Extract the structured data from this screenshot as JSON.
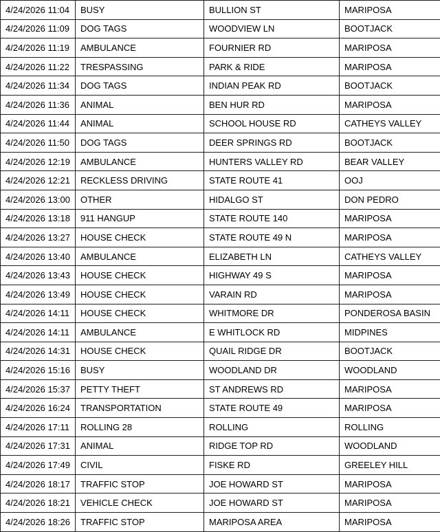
{
  "colors": {
    "border": "#1f1f1f",
    "text": "#000000",
    "background": "#ffffff"
  },
  "table": {
    "rows": [
      {
        "datetime": "4/24/2026 11:04",
        "incident_type": "BUSY",
        "street": "BULLION ST",
        "community": "MARIPOSA"
      },
      {
        "datetime": "4/24/2026 11:09",
        "incident_type": "DOG TAGS",
        "street": "WOODVIEW LN",
        "community": "BOOTJACK"
      },
      {
        "datetime": "4/24/2026 11:19",
        "incident_type": "AMBULANCE",
        "street": "FOURNIER RD",
        "community": "MARIPOSA"
      },
      {
        "datetime": "4/24/2026 11:22",
        "incident_type": "TRESPASSING",
        "street": "PARK & RIDE",
        "community": "MARIPOSA"
      },
      {
        "datetime": "4/24/2026 11:34",
        "incident_type": "DOG TAGS",
        "street": "INDIAN PEAK RD",
        "community": "BOOTJACK"
      },
      {
        "datetime": "4/24/2026 11:36",
        "incident_type": "ANIMAL",
        "street": "BEN HUR RD",
        "community": "MARIPOSA"
      },
      {
        "datetime": "4/24/2026 11:44",
        "incident_type": "ANIMAL",
        "street": "SCHOOL HOUSE RD",
        "community": "CATHEYS VALLEY"
      },
      {
        "datetime": "4/24/2026 11:50",
        "incident_type": "DOG TAGS",
        "street": "DEER SPRINGS RD",
        "community": "BOOTJACK"
      },
      {
        "datetime": "4/24/2026 12:19",
        "incident_type": "AMBULANCE",
        "street": "HUNTERS VALLEY RD",
        "community": "BEAR VALLEY"
      },
      {
        "datetime": "4/24/2026 12:21",
        "incident_type": "RECKLESS DRIVING",
        "street": "STATE ROUTE 41",
        "community": "OOJ"
      },
      {
        "datetime": "4/24/2026 13:00",
        "incident_type": "OTHER",
        "street": "HIDALGO ST",
        "community": "DON PEDRO"
      },
      {
        "datetime": "4/24/2026 13:18",
        "incident_type": "911 HANGUP",
        "street": "STATE ROUTE 140",
        "community": "MARIPOSA"
      },
      {
        "datetime": "4/24/2026 13:27",
        "incident_type": "HOUSE CHECK",
        "street": "STATE ROUTE 49 N",
        "community": "MARIPOSA"
      },
      {
        "datetime": "4/24/2026 13:40",
        "incident_type": "AMBULANCE",
        "street": "ELIZABETH LN",
        "community": "CATHEYS VALLEY"
      },
      {
        "datetime": "4/24/2026 13:43",
        "incident_type": "HOUSE CHECK",
        "street": "HIGHWAY 49 S",
        "community": "MARIPOSA"
      },
      {
        "datetime": "4/24/2026 13:49",
        "incident_type": "HOUSE CHECK",
        "street": "VARAIN RD",
        "community": "MARIPOSA"
      },
      {
        "datetime": "4/24/2026 14:11",
        "incident_type": "HOUSE CHECK",
        "street": "WHITMORE DR",
        "community": "PONDEROSA BASIN"
      },
      {
        "datetime": "4/24/2026 14:11",
        "incident_type": "AMBULANCE",
        "street": "E WHITLOCK RD",
        "community": "MIDPINES"
      },
      {
        "datetime": "4/24/2026 14:31",
        "incident_type": "HOUSE CHECK",
        "street": "QUAIL RIDGE DR",
        "community": "BOOTJACK"
      },
      {
        "datetime": "4/24/2026 15:16",
        "incident_type": "BUSY",
        "street": "WOODLAND DR",
        "community": "WOODLAND"
      },
      {
        "datetime": "4/24/2026 15:37",
        "incident_type": "PETTY THEFT",
        "street": "ST ANDREWS RD",
        "community": "MARIPOSA"
      },
      {
        "datetime": "4/24/2026 16:24",
        "incident_type": "TRANSPORTATION",
        "street": "STATE ROUTE 49",
        "community": "MARIPOSA"
      },
      {
        "datetime": "4/24/2026 17:11",
        "incident_type": "ROLLING 28",
        "street": "ROLLING",
        "community": "ROLLING"
      },
      {
        "datetime": "4/24/2026 17:31",
        "incident_type": "ANIMAL",
        "street": "RIDGE TOP RD",
        "community": "WOODLAND"
      },
      {
        "datetime": "4/24/2026 17:49",
        "incident_type": "CIVIL",
        "street": "FISKE RD",
        "community": "GREELEY HILL"
      },
      {
        "datetime": "4/24/2026 18:17",
        "incident_type": "TRAFFIC STOP",
        "street": "JOE HOWARD ST",
        "community": "MARIPOSA"
      },
      {
        "datetime": "4/24/2026 18:21",
        "incident_type": "VEHICLE CHECK",
        "street": "JOE HOWARD ST",
        "community": "MARIPOSA"
      },
      {
        "datetime": "4/24/2026 18:26",
        "incident_type": "TRAFFIC STOP",
        "street": "MARIPOSA AREA",
        "community": "MARIPOSA"
      }
    ]
  }
}
